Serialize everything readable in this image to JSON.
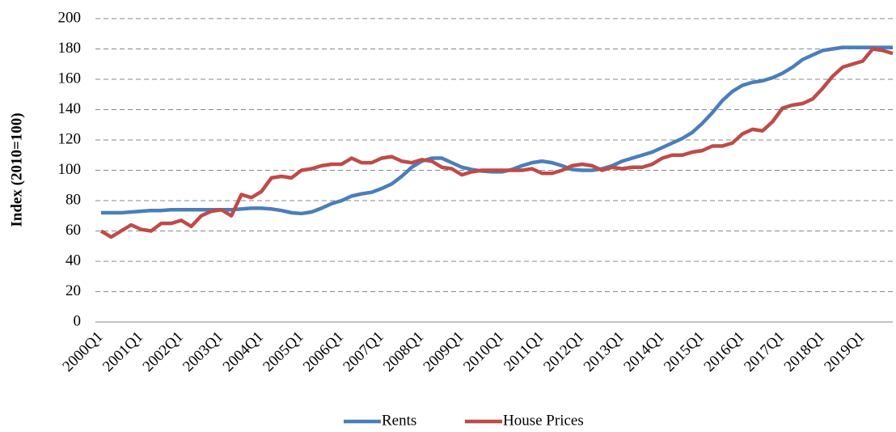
{
  "chart_data": {
    "type": "line",
    "y_label": "Index (2010=100)",
    "categories": [
      "2000Q1",
      null,
      null,
      null,
      "2001Q1",
      null,
      null,
      null,
      "2002Q1",
      null,
      null,
      null,
      "2003Q1",
      null,
      null,
      null,
      "2004Q1",
      null,
      null,
      null,
      "2005Q1",
      null,
      null,
      null,
      "2006Q1",
      null,
      null,
      null,
      "2007Q1",
      null,
      null,
      null,
      "2008Q1",
      null,
      null,
      null,
      "2009Q1",
      null,
      null,
      null,
      "2010Q1",
      null,
      null,
      null,
      "2011Q1",
      null,
      null,
      null,
      "2012Q1",
      null,
      null,
      null,
      "2013Q1",
      null,
      null,
      null,
      "2014Q1",
      null,
      null,
      null,
      "2015Q1",
      null,
      null,
      null,
      "2016Q1",
      null,
      null,
      null,
      "2017Q1",
      null,
      null,
      null,
      "2018Q1",
      null,
      null,
      null,
      "2019Q1",
      null,
      null,
      null
    ],
    "series": [
      {
        "name": "Rents",
        "color": "#4a7ebb",
        "values": [
          72,
          72,
          72,
          72.5,
          73,
          73.5,
          73.5,
          74,
          74,
          74,
          74,
          74,
          74,
          74,
          74.5,
          75,
          75,
          74.5,
          73.5,
          72,
          71.5,
          72.5,
          75,
          78,
          80,
          83,
          84.5,
          85.5,
          88,
          91,
          96,
          102,
          106,
          108,
          108,
          105,
          102,
          100.5,
          99.5,
          99,
          99,
          100.5,
          103,
          105,
          106,
          105,
          103,
          100.5,
          100,
          100,
          101,
          103,
          106,
          108,
          110,
          112,
          115,
          118,
          121,
          125,
          131,
          138,
          146,
          152,
          156,
          158,
          159,
          161,
          164,
          168,
          173,
          176,
          179,
          180,
          181,
          181,
          181,
          181,
          181,
          181
        ]
      },
      {
        "name": "House Prices",
        "color": "#be4b48",
        "values": [
          60,
          56,
          60,
          64,
          61,
          60,
          65,
          65,
          67,
          63,
          70,
          73,
          74,
          70,
          84,
          82,
          86,
          95,
          96,
          95,
          100,
          101,
          103,
          104,
          104,
          108,
          105,
          105,
          108,
          109,
          106,
          105,
          107,
          106,
          102,
          101,
          97,
          99,
          100,
          100,
          100,
          100,
          100,
          101,
          98,
          98,
          100,
          103,
          104,
          103,
          100,
          102,
          101,
          102,
          102,
          104,
          108,
          110,
          110,
          112,
          113,
          116,
          116,
          118,
          124,
          127,
          126,
          132,
          141,
          143,
          144,
          147,
          154,
          162,
          168,
          170,
          172,
          180,
          179,
          177
        ]
      }
    ],
    "ylim": [
      0,
      200
    ],
    "yticks": [
      0,
      20,
      40,
      60,
      80,
      100,
      120,
      140,
      160,
      180,
      200
    ],
    "grid": true,
    "legend": "bottom"
  }
}
